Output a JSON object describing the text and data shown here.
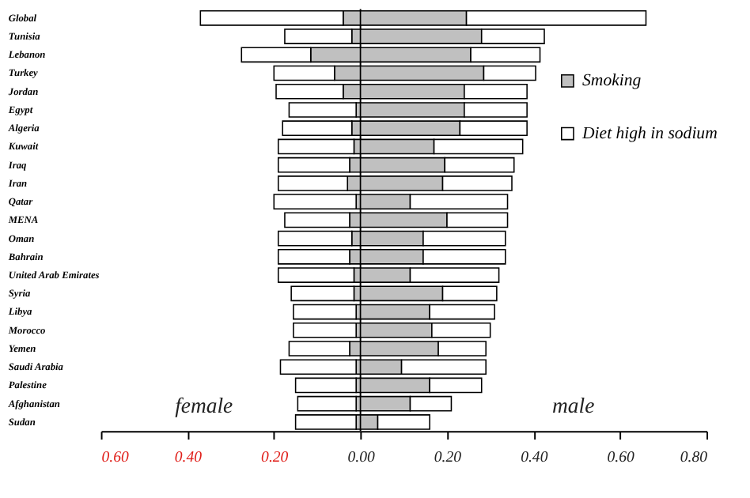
{
  "chart_data": {
    "type": "bar",
    "orientation": "horizontal",
    "stacked": true,
    "categories": [
      "Global",
      "Tunisia",
      "Lebanon",
      "Turkey",
      "Jordan",
      "Egypt",
      "Algeria",
      "Kuwait",
      "Iraq",
      "Iran",
      "Qatar",
      "MENA",
      "Oman",
      "Bahrain",
      "United Arab Emirates",
      "Syria",
      "Libya",
      "Morocco",
      "Yemen",
      "Saudi Arabia",
      "Palestine",
      "Afghanistan",
      "Sudan"
    ],
    "series": [
      {
        "name": "Smoking",
        "color": "#c0c0c0",
        "values": [
          -0.04,
          -0.02,
          -0.115,
          -0.06,
          -0.04,
          -0.01,
          -0.02,
          -0.015,
          -0.025,
          -0.03,
          -0.01,
          -0.025,
          -0.02,
          -0.025,
          -0.015,
          -0.015,
          -0.01,
          -0.01,
          -0.025,
          -0.01,
          -0.01,
          -0.01,
          -0.01
        ]
      },
      {
        "name": "Diet high in sodium",
        "color": "#ffffff",
        "values": [
          -0.33,
          -0.155,
          -0.16,
          -0.14,
          -0.155,
          -0.155,
          -0.16,
          -0.175,
          -0.165,
          -0.16,
          -0.19,
          -0.15,
          -0.17,
          -0.165,
          -0.175,
          -0.145,
          -0.145,
          -0.145,
          -0.14,
          -0.175,
          -0.14,
          -0.135,
          -0.14
        ]
      },
      {
        "color": "#c0c0c0",
        "values": [
          0.245,
          0.28,
          0.255,
          0.285,
          0.24,
          0.24,
          0.23,
          0.17,
          0.195,
          0.19,
          0.115,
          0.2,
          0.145,
          0.145,
          0.115,
          0.19,
          0.16,
          0.165,
          0.18,
          0.095,
          0.16,
          0.115,
          0.04
        ]
      },
      {
        "color": "#ffffff",
        "values": [
          0.415,
          0.145,
          0.16,
          0.12,
          0.145,
          0.145,
          0.155,
          0.205,
          0.16,
          0.16,
          0.225,
          0.14,
          0.19,
          0.19,
          0.205,
          0.125,
          0.15,
          0.135,
          0.11,
          0.195,
          0.12,
          0.095,
          0.12
        ]
      }
    ],
    "xlim": [
      -0.6,
      0.8
    ],
    "xticks": [
      {
        "value": -0.6,
        "label": "0.60"
      },
      {
        "value": -0.4,
        "label": "0.40"
      },
      {
        "value": -0.2,
        "label": "0.20"
      },
      {
        "value": 0,
        "label": "0.00"
      },
      {
        "value": 0.2,
        "label": "0.20"
      },
      {
        "value": 0.4,
        "label": "0.40"
      },
      {
        "value": 0.6,
        "label": "0.60"
      },
      {
        "value": 0.8,
        "label": "0.80"
      }
    ],
    "ref_lines": [
      {
        "axis": "x",
        "value": 0,
        "label": null
      }
    ],
    "annotations": [
      "female",
      "male"
    ],
    "legend": "right",
    "grid": false
  }
}
